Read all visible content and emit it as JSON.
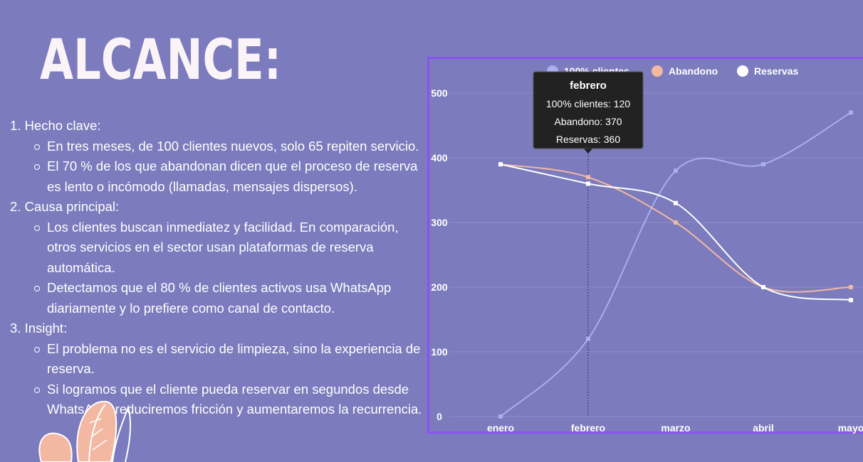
{
  "title": "ALCANCE:",
  "sections": [
    {
      "label": "1. Hecho clave:",
      "bullets": [
        "En tres meses, de 100 clientes nuevos, solo 65 repiten servicio.",
        "El 70 % de los que abandonan dicen que el proceso de reserva es lento o incómodo (llamadas, mensajes dispersos)."
      ]
    },
    {
      "label": "2. Causa principal:",
      "bullets": [
        "Los clientes buscan inmediatez y facilidad. En comparación, otros servicios en el sector usan plataformas de reserva automática.",
        "Detectamos que el 80 % de clientes activos usa WhatsApp diariamente y lo prefiere como canal de contacto."
      ]
    },
    {
      "label": "3. Insight:",
      "bullets": [
        "El problema no es el servicio de limpieza, sino la experiencia de reserva.",
        "Si logramos que el cliente pueda reservar en segundos desde WhatsApp, reduciremos fricción y aumentaremos la recurrencia."
      ]
    }
  ],
  "colors": {
    "background": "#7b7bbd",
    "frame": "#8a52f0",
    "grid": "#8f8fcc",
    "series_clientes": "#a9aef0",
    "series_abandono": "#f2b8a2",
    "series_reservas": "#ffffff",
    "tooltip_bg": "#222222",
    "decor": "#f2b8a2"
  },
  "chart_data": {
    "type": "line",
    "categories": [
      "enero",
      "febrero",
      "marzo",
      "abril",
      "mayo"
    ],
    "series": [
      {
        "name": "100% clientes",
        "values": [
          0,
          120,
          380,
          390,
          470
        ]
      },
      {
        "name": "Abandono",
        "values": [
          390,
          370,
          300,
          200,
          200
        ]
      },
      {
        "name": "Reservas",
        "values": [
          390,
          360,
          330,
          200,
          180
        ]
      }
    ],
    "yticks": [
      0,
      100,
      200,
      300,
      400,
      500
    ],
    "ylim": [
      0,
      500
    ],
    "legend_position": "top",
    "grid": true,
    "tooltip": {
      "category": "febrero",
      "title": "febrero",
      "lines": [
        "100% clientes: 120",
        "Abandono: 370",
        "Reservas: 360"
      ]
    }
  }
}
